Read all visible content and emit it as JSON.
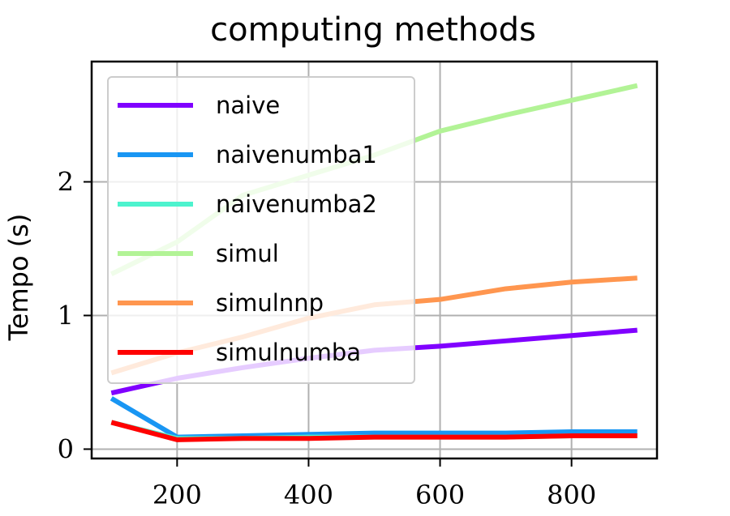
{
  "chart_data": {
    "type": "line",
    "title": "computing methods",
    "xlabel": "",
    "ylabel": "Tempo (s)",
    "xlim": [
      70,
      930
    ],
    "ylim": [
      -0.07,
      2.9
    ],
    "xticks": [
      200,
      400,
      600,
      800
    ],
    "yticks": [
      0,
      1,
      2
    ],
    "grid": true,
    "legend_position": "upper left",
    "x": [
      100,
      200,
      300,
      400,
      500,
      600,
      700,
      800,
      900
    ],
    "series": [
      {
        "name": "naive",
        "color": "#8000ff",
        "values": [
          0.42,
          0.53,
          0.61,
          0.68,
          0.74,
          0.77,
          0.81,
          0.85,
          0.89
        ]
      },
      {
        "name": "naivenumba1",
        "color": "#1996f3",
        "values": [
          0.38,
          0.09,
          0.1,
          0.11,
          0.12,
          0.12,
          0.12,
          0.13,
          0.13
        ]
      },
      {
        "name": "naivenumba2",
        "color": "#4df3ce",
        "values": [
          0.2,
          0.08,
          0.08,
          0.09,
          0.09,
          0.09,
          0.09,
          0.1,
          0.1
        ]
      },
      {
        "name": "simul",
        "color": "#b2f396",
        "values": [
          1.31,
          1.55,
          1.9,
          2.05,
          2.2,
          2.38,
          2.5,
          2.61,
          2.72
        ]
      },
      {
        "name": "simulnnp",
        "color": "#ff964f",
        "values": [
          0.57,
          0.72,
          0.84,
          0.98,
          1.08,
          1.12,
          1.2,
          1.25,
          1.28
        ]
      },
      {
        "name": "simulnumba",
        "color": "#ff0000",
        "values": [
          0.2,
          0.07,
          0.08,
          0.08,
          0.09,
          0.09,
          0.09,
          0.1,
          0.1
        ]
      }
    ]
  }
}
